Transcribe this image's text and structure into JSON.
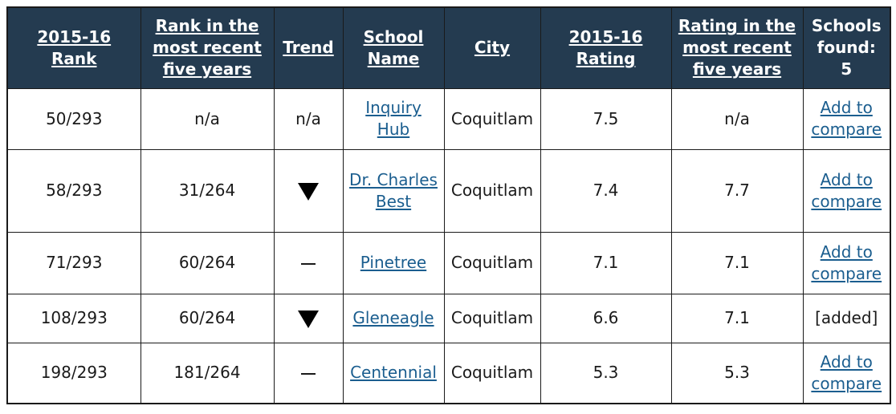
{
  "columns": {
    "rank": "2015-16 Rank",
    "rank_recent": "Rank in the most recent five years",
    "trend": "Trend",
    "school": "School Name",
    "city": "City",
    "rating": "2015-16 Rating",
    "rating_recent": "Rating in the most recent five years",
    "found_label": "Schools found:",
    "found_count": "5"
  },
  "rows": [
    {
      "rank": "50/293",
      "rank_recent": "n/a",
      "trend": "n/a",
      "trend_icon": "none",
      "school": "Inquiry Hub",
      "city": "Coquitlam",
      "rating": "7.5",
      "rating_recent": "n/a",
      "action": "Add to compare",
      "added": false
    },
    {
      "rank": "58/293",
      "rank_recent": "31/264",
      "trend": "",
      "trend_icon": "down-triangle-icon",
      "school": "Dr. Charles Best",
      "city": "Coquitlam",
      "rating": "7.4",
      "rating_recent": "7.7",
      "action": "Add to compare",
      "added": false
    },
    {
      "rank": "71/293",
      "rank_recent": "60/264",
      "trend": "",
      "trend_icon": "dash-icon",
      "school": "Pinetree",
      "city": "Coquitlam",
      "rating": "7.1",
      "rating_recent": "7.1",
      "action": "Add to compare",
      "added": false
    },
    {
      "rank": "108/293",
      "rank_recent": "60/264",
      "trend": "",
      "trend_icon": "down-triangle-icon",
      "school": "Gleneagle",
      "city": "Coquitlam",
      "rating": "6.6",
      "rating_recent": "7.1",
      "action": "[added]",
      "added": true
    },
    {
      "rank": "198/293",
      "rank_recent": "181/264",
      "trend": "",
      "trend_icon": "dash-icon",
      "school": "Centennial",
      "city": "Coquitlam",
      "rating": "5.3",
      "rating_recent": "5.3",
      "action": "Add to compare",
      "added": false
    }
  ],
  "colors": {
    "header_bg": "#243b50",
    "header_text": "#ffffff",
    "link": "#1b5e8f",
    "border": "#1a1a1a"
  }
}
